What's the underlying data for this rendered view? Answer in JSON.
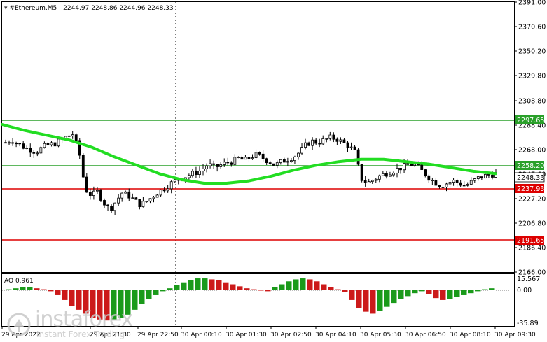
{
  "header": {
    "symbol": "#Ethereum,M5",
    "ohlc": "2244.97 2248.86 2244.96 2248.33"
  },
  "indicator": {
    "name": "AO 0.961",
    "axis_top": "15.567",
    "axis_zero": "0.00",
    "axis_bottom": "-35.89"
  },
  "price_axis": [
    "2391.00",
    "2370.60",
    "2350.20",
    "2329.80",
    "2308.80",
    "2288.40",
    "2268.00",
    "2247.60",
    "2227.20",
    "2206.80",
    "2186.40",
    "2166.00"
  ],
  "level_labels": {
    "l1": "2297.65",
    "l2": "2258.20",
    "current": "2248.33",
    "l3": "2237.93",
    "l4": "2191.65"
  },
  "time_axis": [
    "29 Apr 2022",
    "29 Apr 21:30",
    "29 Apr 22:50",
    "30 Apr 00:10",
    "30 Apr 01:30",
    "30 Apr 02:50",
    "30 Apr 04:10",
    "30 Apr 05:30",
    "30 Apr 06:50",
    "30 Apr 08:10",
    "30 Apr 09:30"
  ],
  "watermark": {
    "brand": "instaforex",
    "tagline": "Instant Forex Trading"
  },
  "colors": {
    "ma": "#22dd22",
    "resistance": "#2aa02a",
    "support": "#dd0000",
    "ao_up": "#1a9a1a",
    "ao_down": "#cc1a1a"
  },
  "chart_data": {
    "type": "candlestick",
    "symbol": "#Ethereum",
    "timeframe": "M5",
    "ylim": [
      2166.0,
      2391.0
    ],
    "levels": [
      2297.65,
      2258.2,
      2237.93,
      2191.65
    ],
    "current_price": 2248.33,
    "close_path": [
      2274,
      2276,
      2273,
      2270,
      2268,
      2266,
      2270,
      2272,
      2273,
      2276,
      2279,
      2281,
      2266,
      2235,
      2230,
      2233,
      2224,
      2218,
      2225,
      2232,
      2230,
      2226,
      2222,
      2225,
      2229,
      2233,
      2236,
      2240,
      2243,
      2245,
      2247,
      2249,
      2251,
      2256,
      2253,
      2255,
      2257,
      2258,
      2261,
      2259,
      2262,
      2264,
      2261,
      2258,
      2255,
      2258,
      2260,
      2262,
      2266,
      2272,
      2275,
      2274,
      2276,
      2278,
      2277,
      2274,
      2271,
      2266,
      2244,
      2240,
      2243,
      2246,
      2248,
      2250,
      2252,
      2254,
      2256,
      2255,
      2250,
      2245,
      2241,
      2238,
      2240,
      2242,
      2240,
      2238,
      2241,
      2244,
      2246,
      2247,
      2248
    ],
    "ma_path": [
      2289,
      2284,
      2280,
      2276,
      2270,
      2262,
      2255,
      2248,
      2243,
      2240,
      2240,
      2242,
      2246,
      2251,
      2255,
      2258,
      2260,
      2260,
      2258,
      2256,
      2253,
      2250,
      2248
    ],
    "ao_values": [
      1,
      2,
      3,
      3,
      2,
      1,
      -1,
      -5,
      -10,
      -16,
      -20,
      -24,
      -28,
      -30,
      -31,
      -30,
      -28,
      -25,
      -20,
      -14,
      -9,
      -5,
      -1,
      2,
      5,
      8,
      10,
      12,
      12,
      11,
      10,
      8,
      6,
      4,
      2,
      1,
      0,
      -1,
      3,
      6,
      9,
      11,
      12,
      11,
      9,
      6,
      3,
      1,
      -2,
      -10,
      -18,
      -22,
      -24,
      -21,
      -17,
      -13,
      -9,
      -6,
      -3,
      -1,
      -4,
      -8,
      -10,
      -9,
      -7,
      -5,
      -3,
      -1,
      1,
      2
    ]
  }
}
